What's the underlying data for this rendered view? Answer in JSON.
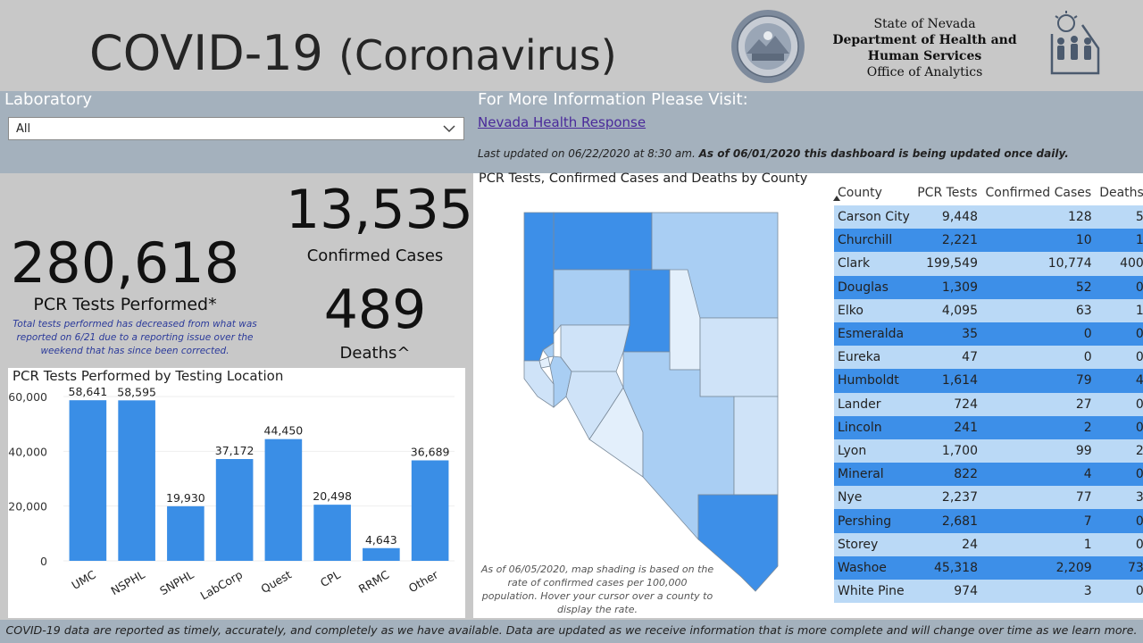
{
  "header": {
    "title": "COVID-19",
    "title_paren": "(Coronavirus)",
    "agency_line1": "State of Nevada",
    "agency_line2": "Department of Health and",
    "agency_line3": "Human Services",
    "agency_line4": "Office of Analytics",
    "seal_text": "THE GREAT SEAL OF THE STATE OF NEVADA"
  },
  "filter": {
    "label": "Laboratory",
    "selected": "All",
    "chevron_icon": "chevron-down-icon"
  },
  "info": {
    "heading": "For More Information Please Visit:",
    "link_text": "Nevada Health Response",
    "updated_text": "Last updated on 06/22/2020 at 8:30 am.",
    "updated_bold": "As of 06/01/2020 this dashboard is being updated once daily."
  },
  "kpis": {
    "tests_value": "280,618",
    "tests_label": "PCR Tests Performed*",
    "tests_note": "Total tests performed has decreased from what was reported on 6/21 due to a reporting issue over the weekend that has since been corrected.",
    "cases_value": "13,535",
    "cases_label": "Confirmed Cases",
    "deaths_value": "489",
    "deaths_label": "Deaths^"
  },
  "chart_data": {
    "type": "bar",
    "title": "PCR Tests Performed by Testing Location",
    "categories": [
      "UMC",
      "NSPHL",
      "SNPHL",
      "LabCorp",
      "Quest",
      "CPL",
      "RRMC",
      "Other"
    ],
    "values": [
      58641,
      58595,
      19930,
      37172,
      44450,
      20498,
      4643,
      36689
    ],
    "value_labels": [
      "58,641",
      "58,595",
      "19,930",
      "37,172",
      "44,450",
      "20,498",
      "4,643",
      "36,689"
    ],
    "yticks": [
      "0",
      "20,000",
      "40,000",
      "60,000"
    ],
    "ytick_values": [
      0,
      20000,
      40000,
      60000
    ],
    "ylim": [
      0,
      60000
    ],
    "bar_color": "#3a8ee6"
  },
  "map": {
    "title": "PCR Tests, Confirmed Cases and Deaths by County",
    "note": "As of 06/05/2020, map shading is based on the rate of confirmed cases per 100,000 population. Hover your cursor over a county to display the rate.",
    "colors": {
      "dark": "#3d8fe8",
      "medium": "#a9cef3",
      "light": "#cfe3f8",
      "lightest": "#e3effb",
      "border": "#7a8a9a"
    }
  },
  "table": {
    "columns": [
      "County",
      "PCR Tests",
      "Confirmed Cases",
      "Deaths"
    ],
    "sort_icon": "sort-ascending-icon",
    "rows": [
      {
        "county": "Carson City",
        "tests": "9,448",
        "cases": "128",
        "deaths": "5"
      },
      {
        "county": "Churchill",
        "tests": "2,221",
        "cases": "10",
        "deaths": "1"
      },
      {
        "county": "Clark",
        "tests": "199,549",
        "cases": "10,774",
        "deaths": "400"
      },
      {
        "county": "Douglas",
        "tests": "1,309",
        "cases": "52",
        "deaths": "0"
      },
      {
        "county": "Elko",
        "tests": "4,095",
        "cases": "63",
        "deaths": "1"
      },
      {
        "county": "Esmeralda",
        "tests": "35",
        "cases": "0",
        "deaths": "0"
      },
      {
        "county": "Eureka",
        "tests": "47",
        "cases": "0",
        "deaths": "0"
      },
      {
        "county": "Humboldt",
        "tests": "1,614",
        "cases": "79",
        "deaths": "4"
      },
      {
        "county": "Lander",
        "tests": "724",
        "cases": "27",
        "deaths": "0"
      },
      {
        "county": "Lincoln",
        "tests": "241",
        "cases": "2",
        "deaths": "0"
      },
      {
        "county": "Lyon",
        "tests": "1,700",
        "cases": "99",
        "deaths": "2"
      },
      {
        "county": "Mineral",
        "tests": "822",
        "cases": "4",
        "deaths": "0"
      },
      {
        "county": "Nye",
        "tests": "2,237",
        "cases": "77",
        "deaths": "3"
      },
      {
        "county": "Pershing",
        "tests": "2,681",
        "cases": "7",
        "deaths": "0"
      },
      {
        "county": "Storey",
        "tests": "24",
        "cases": "1",
        "deaths": "0"
      },
      {
        "county": "Washoe",
        "tests": "45,318",
        "cases": "2,209",
        "deaths": "73"
      },
      {
        "county": "White Pine",
        "tests": "974",
        "cases": "3",
        "deaths": "0"
      }
    ]
  },
  "footer": {
    "text": "COVID-19 data are reported as timely, accurately, and completely as we have available.  Data are updated as we receive information that is more complete and will change over time as we learn more."
  },
  "colors": {
    "header_bg": "#c8c8c8",
    "band_bg": "#a4b1bd",
    "accent": "#3d8fe8"
  }
}
